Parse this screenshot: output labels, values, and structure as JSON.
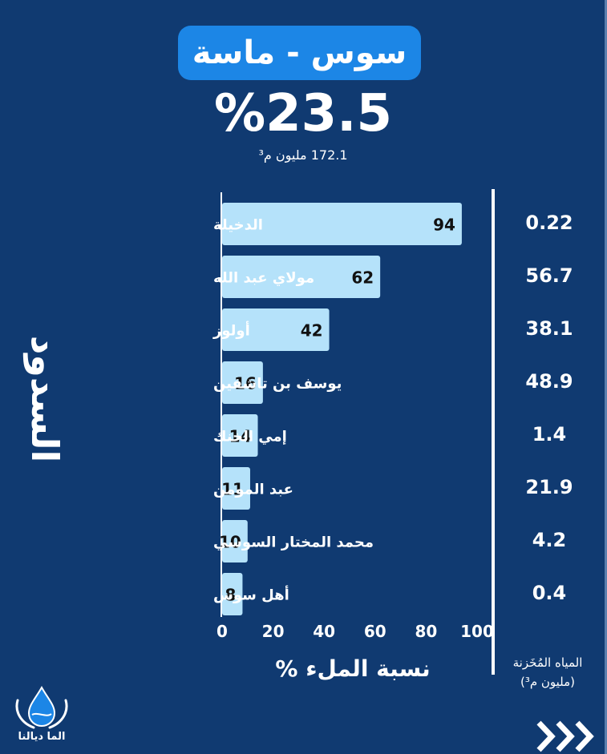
{
  "header": {
    "region_title": "سوس - ماسة",
    "fill_percent": "%23.5",
    "stored_volume": "172.1 مليون م³"
  },
  "vertical_title": "السدود",
  "stored_column": {
    "title": "المياه المُخَزنة",
    "unit": "(مليون م³)"
  },
  "logo": {
    "text": "الما ديالنا"
  },
  "icons": {
    "logo": "water-drop-hands-icon",
    "next": "triple-chevron-right-icon"
  },
  "colors": {
    "background": "#103a71",
    "pill": "#1c86e6",
    "bar": "#b5e2fa",
    "text": "#ffffff"
  },
  "chart_data": {
    "type": "bar",
    "orientation": "horizontal",
    "categories": [
      "الدخيلة",
      "مولاي عبد الله",
      "أولوز",
      "يوسف بن تاشفين",
      "إمي الخنك",
      "عبد المومن",
      "محمد المختار السوسي",
      "أهل سوس"
    ],
    "values": [
      94,
      62,
      42,
      16,
      14,
      11,
      10,
      8
    ],
    "stored_million_m3": [
      "0.22",
      "56.7",
      "38.1",
      "48.9",
      "1.4",
      "21.9",
      "4.2",
      "0.4"
    ],
    "xlim": [
      0,
      100
    ],
    "xticks": [
      0,
      20,
      40,
      60,
      80,
      100
    ],
    "xlabel": "نسبة الملء %",
    "ylabel": "السدود",
    "grid": false,
    "data_labels": true
  }
}
